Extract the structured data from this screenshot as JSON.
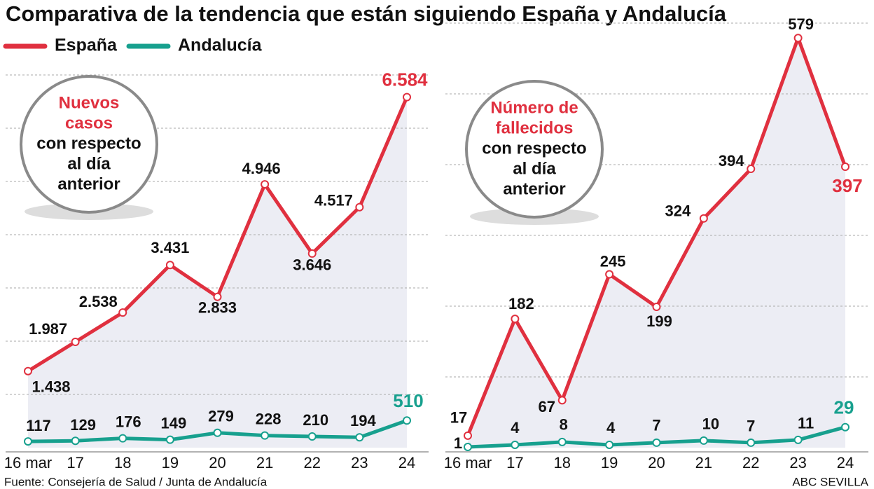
{
  "title": "Comparativa de la tendencia que están siguiendo España y Andalucía",
  "source": "Fuente: Consejería de Salud / Junta de Andalucía",
  "credit": "ABC SEVILLA",
  "chart_data": [
    {
      "type": "line",
      "annotation": {
        "highlight": [
          "Nuevos",
          "casos"
        ],
        "text": [
          "con respecto",
          "al día",
          "anterior"
        ]
      },
      "categories": [
        "16 mar",
        "17",
        "18",
        "19",
        "20",
        "21",
        "22",
        "23",
        "24"
      ],
      "series": [
        {
          "name": "España",
          "color": "#e0303f",
          "values": [
            1438,
            1987,
            2538,
            3431,
            2833,
            4946,
            3646,
            4517,
            6584
          ],
          "value_labels": [
            "1.438",
            "1.987",
            "2.538",
            "3.431",
            "2.833",
            "4.946",
            "3.646",
            "4.517",
            "6.584"
          ]
        },
        {
          "name": "Andalucía",
          "color": "#17a08e",
          "values": [
            117,
            129,
            176,
            149,
            279,
            228,
            210,
            194,
            510
          ]
        }
      ],
      "ylim": [
        0,
        7000
      ],
      "yticks": [
        0,
        1000,
        2000,
        3000,
        4000,
        5000,
        6000,
        7000
      ],
      "grid": true
    },
    {
      "type": "line",
      "annotation": {
        "highlight": [
          "Número de",
          "fallecidos"
        ],
        "text": [
          "con respecto",
          "al día",
          "anterior"
        ]
      },
      "categories": [
        "16 mar",
        "17",
        "18",
        "19",
        "20",
        "21",
        "22",
        "23",
        "24"
      ],
      "series": [
        {
          "name": "España",
          "color": "#e0303f",
          "values": [
            17,
            182,
            67,
            245,
            199,
            324,
            394,
            579,
            397
          ]
        },
        {
          "name": "Andalucía",
          "color": "#17a08e",
          "values": [
            1,
            4,
            8,
            4,
            7,
            10,
            7,
            11,
            29
          ]
        }
      ],
      "ylim": [
        0,
        600
      ],
      "yticks": [
        0,
        100,
        200,
        300,
        400,
        500,
        600
      ],
      "grid": true
    }
  ]
}
